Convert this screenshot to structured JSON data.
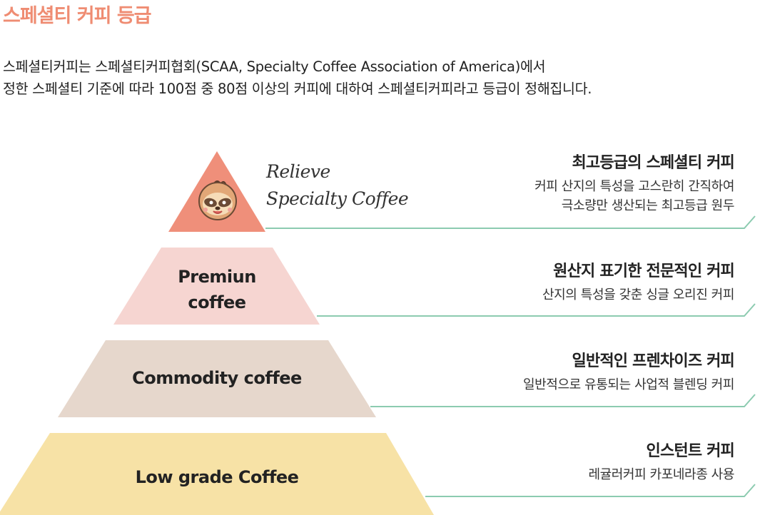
{
  "page": {
    "title": "스페셜티 커피 등급",
    "intro_line1": "스페셜티커피는 스페셜티커피협회(SCAA, Specialty Coffee Association of America)에서",
    "intro_line2": "정한 스페셜티 기준에 따라 100점 중 80점 이상의 커피에 대하여 스페셜티커피라고 등급이 정해집니다."
  },
  "colors": {
    "title": "#ef8c72",
    "tier1": "#ef8f7a",
    "tier2": "#f6d5d1",
    "tier3": "#e6d7cc",
    "tier4": "#f7e2a6",
    "connector": "#8ccbb0"
  },
  "pyramid": {
    "top_logo": {
      "script_line1": "Relieve",
      "script_line2": "Specialty Coffee",
      "mascot_icon": "sloth-face-icon"
    },
    "tiers": [
      {
        "label_line1": "",
        "label_line2": "",
        "heading": "최고등급의 스페셜티 커피",
        "desc_line1": "커피 산지의 특성을 고스란히 간직하여",
        "desc_line2": "극소량만 생산되는 최고등급 원두"
      },
      {
        "label_line1": "Premiun",
        "label_line2": "coffee",
        "heading": "원산지 표기한 전문적인 커피",
        "desc_line1": "산지의 특성을 갖춘 싱글 오리진 커피",
        "desc_line2": ""
      },
      {
        "label_line1": "Commodity coffee",
        "label_line2": "",
        "heading": "일반적인 프렌차이즈 커피",
        "desc_line1": "일반적으로 유통되는 사업적 블렌딩 커피",
        "desc_line2": ""
      },
      {
        "label_line1": "Low grade Coffee",
        "label_line2": "",
        "heading": "인스턴트 커피",
        "desc_line1": "레귤러커피 카포네라종 사용",
        "desc_line2": ""
      }
    ]
  }
}
